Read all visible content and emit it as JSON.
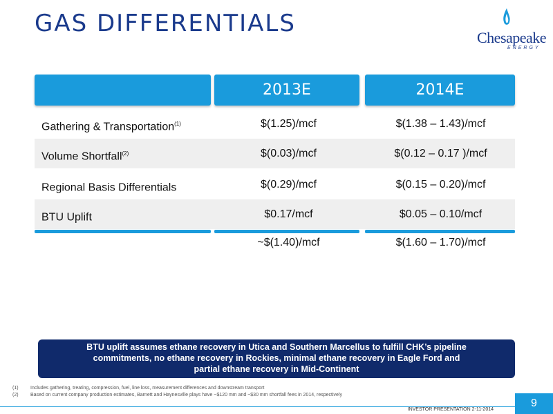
{
  "title": "GAS DIFFERENTIALS",
  "logo": {
    "name": "Chesapeake",
    "sub": "ENERGY"
  },
  "table": {
    "headers": [
      "2013E",
      "2014E"
    ],
    "rows": [
      {
        "label": "Gathering & Transportation",
        "sup": "(1)",
        "v2013": "$(1.25)/mcf",
        "v2014": "$(1.38 – 1.43)/mcf"
      },
      {
        "label": "Volume Shortfall",
        "sup": "(2)",
        "v2013": "$(0.03)/mcf",
        "v2014": "$(0.12 – 0.17 )/mcf"
      },
      {
        "label": "Regional Basis Differentials",
        "sup": "",
        "v2013": "$(0.29)/mcf",
        "v2014": "$(0.15 – 0.20)/mcf"
      },
      {
        "label": "BTU Uplift",
        "sup": "",
        "v2013": "$0.17/mcf",
        "v2014": "$0.05 – 0.10/mcf"
      }
    ],
    "totals": {
      "v2013": "~$(1.40)/mcf",
      "v2014": "$(1.60 – 1.70)/mcf"
    }
  },
  "note": {
    "line1": "BTU uplift assumes ethane recovery in Utica and Southern Marcellus to fulfill CHK’s pipeline",
    "line2": "commitments, no ethane recovery in Rockies, minimal ethane recovery in Eagle Ford and",
    "line3": "partial ethane recovery in Mid-Continent"
  },
  "footnotes": [
    {
      "num": "(1)",
      "text": "Includes gathering, treating, compression, fuel, line loss, measurement differences and downstream transport"
    },
    {
      "num": "(2)",
      "text": "Based on current company production estimates, Barnett and Haynesville plays have ~$120 mm and ~$30 mm shortfall fees in 2014, respectively"
    }
  ],
  "footer": {
    "text": "INVESTOR PRESENTATION 2-11-2014",
    "page": "9"
  },
  "colors": {
    "title": "#1a3a8c",
    "accent": "#1a9bdc",
    "note_bg": "#102a6b"
  }
}
